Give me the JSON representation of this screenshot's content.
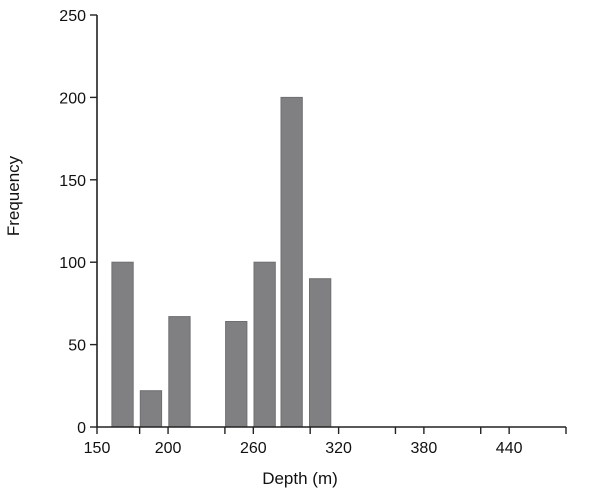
{
  "chart_data": {
    "type": "bar",
    "title": "",
    "xlabel": "Depth (m)",
    "ylabel": "Frequency",
    "ylim": [
      0,
      250
    ],
    "xlim": [
      150,
      480
    ],
    "y_ticks": [
      0,
      50,
      100,
      150,
      200,
      250
    ],
    "x_ticks": [
      150,
      200,
      260,
      320,
      380,
      440
    ],
    "minor_x_ticks": [
      180,
      240,
      300,
      360,
      420,
      480
    ],
    "bar_width": 15,
    "bars": [
      {
        "x": 168,
        "value": 100
      },
      {
        "x": 188,
        "value": 22
      },
      {
        "x": 208,
        "value": 67
      },
      {
        "x": 248,
        "value": 64
      },
      {
        "x": 268,
        "value": 100
      },
      {
        "x": 287,
        "value": 200
      },
      {
        "x": 307,
        "value": 90
      }
    ],
    "grid": false,
    "bar_color": "#808083"
  }
}
